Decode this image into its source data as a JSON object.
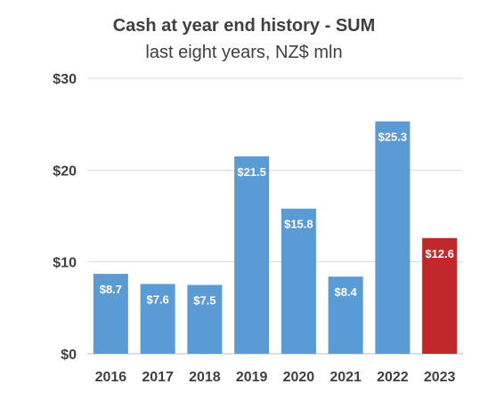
{
  "chart_data": {
    "type": "bar",
    "title": "Cash at year end history - SUM",
    "subtitle": "last eight years, NZ$ mln",
    "categories": [
      "2016",
      "2017",
      "2018",
      "2019",
      "2020",
      "2021",
      "2022",
      "2023"
    ],
    "values": [
      8.7,
      7.6,
      7.5,
      21.5,
      15.8,
      8.4,
      25.3,
      12.6
    ],
    "data_labels": [
      "$8.7",
      "$7.6",
      "$7.5",
      "$21.5",
      "$15.8",
      "$8.4",
      "$25.3",
      "$12.6"
    ],
    "ylim": [
      0,
      30
    ],
    "yticks": [
      0,
      10,
      20,
      30
    ],
    "ytick_labels": [
      "$0",
      "$10",
      "$20",
      "$30"
    ],
    "grid": true,
    "legend": "none",
    "colors": {
      "bar": "#5b9bd5",
      "highlight_bar": "#c0282b",
      "highlight_category": "2023",
      "grid": "#d9d9d9",
      "text": "#404040"
    }
  }
}
